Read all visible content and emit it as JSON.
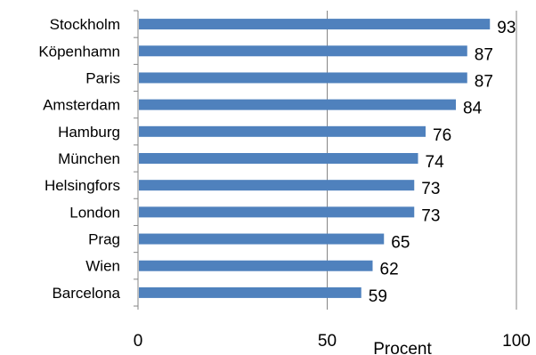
{
  "chart_data": {
    "type": "bar",
    "orientation": "horizontal",
    "categories": [
      "Stockholm",
      "Köpenhamn",
      "Paris",
      "Amsterdam",
      "Hamburg",
      "München",
      "Helsingfors",
      "London",
      "Prag",
      "Wien",
      "Barcelona"
    ],
    "values": [
      93,
      87,
      87,
      84,
      76,
      74,
      73,
      73,
      65,
      62,
      59
    ],
    "data_labels": [
      "93",
      "87",
      "87",
      "84",
      "76",
      "74",
      "73",
      "73",
      "65",
      "62",
      "59"
    ],
    "xlabel": "Procent",
    "ylabel": "",
    "xlim": [
      0,
      100
    ],
    "xticks": [
      "0",
      "50",
      "100"
    ],
    "gridlines": "vertical",
    "legend": "none",
    "bar_color": "#4f81bd",
    "grid_color": "#868686"
  }
}
